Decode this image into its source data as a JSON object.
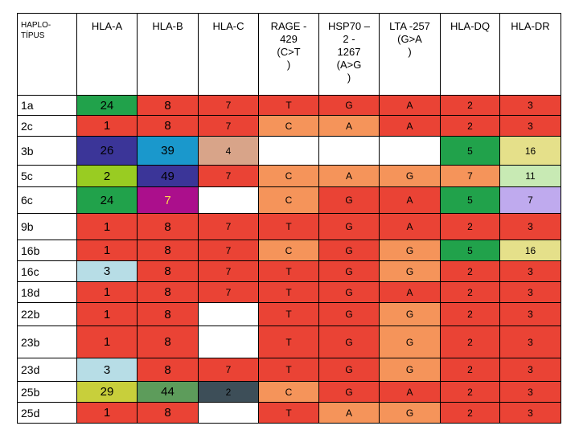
{
  "columns": [
    {
      "label": "HAPLO-\nTÍPUS"
    },
    {
      "label": "HLA-A"
    },
    {
      "label": "HLA-B"
    },
    {
      "label": "HLA-C"
    },
    {
      "label": "RAGE -\n429\n(C>T\n)"
    },
    {
      "label": "HSP70 –\n2 -\n1267\n(A>G\n)"
    },
    {
      "label": "LTA -257\n(G>A\n)"
    },
    {
      "label": "HLA-DQ"
    },
    {
      "label": "HLA-DR"
    }
  ],
  "colors": {
    "red": "#ea4335",
    "green": "#21a24b",
    "navy": "#3b3598",
    "blue": "#1a98cc",
    "tan": "#d8a489",
    "white": "#ffffff",
    "yellow": "#e5e08a",
    "lime": "#99cc22",
    "lightgreen": "#c8eab4",
    "magenta": "#ab0f8c",
    "lavender": "#bfaaee",
    "lightblue": "#b7dde6",
    "olive": "#c8cf3b",
    "sage": "#5d9c5b",
    "slate": "#3d4e58",
    "orange": "#f5945a"
  },
  "rows": [
    {
      "label": "1a",
      "cells": [
        {
          "v": "24",
          "c": "green"
        },
        {
          "v": "8",
          "c": "red"
        },
        {
          "v": "7",
          "c": "red"
        },
        {
          "v": "T",
          "c": "red"
        },
        {
          "v": "G",
          "c": "red"
        },
        {
          "v": "A",
          "c": "red"
        },
        {
          "v": "2",
          "c": "red"
        },
        {
          "v": "3",
          "c": "red"
        }
      ]
    },
    {
      "label": "2c",
      "cells": [
        {
          "v": "1",
          "c": "red"
        },
        {
          "v": "8",
          "c": "red"
        },
        {
          "v": "7",
          "c": "red"
        },
        {
          "v": "C",
          "c": "orange"
        },
        {
          "v": "A",
          "c": "orange"
        },
        {
          "v": "A",
          "c": "red"
        },
        {
          "v": "2",
          "c": "red"
        },
        {
          "v": "3",
          "c": "red"
        }
      ]
    },
    {
      "label": "3b",
      "cells": [
        {
          "v": "26",
          "c": "navy"
        },
        {
          "v": "39",
          "c": "blue"
        },
        {
          "v": "4",
          "c": "tan"
        },
        {
          "v": "",
          "c": "white"
        },
        {
          "v": "",
          "c": "white"
        },
        {
          "v": "",
          "c": "white"
        },
        {
          "v": "5",
          "c": "green"
        },
        {
          "v": "16",
          "c": "yellow"
        }
      ]
    },
    {
      "label": "5c",
      "cells": [
        {
          "v": "2",
          "c": "lime"
        },
        {
          "v": "49",
          "c": "navy"
        },
        {
          "v": "7",
          "c": "red"
        },
        {
          "v": "C",
          "c": "orange"
        },
        {
          "v": "A",
          "c": "orange"
        },
        {
          "v": "G",
          "c": "orange"
        },
        {
          "v": "7",
          "c": "orange"
        },
        {
          "v": "11",
          "c": "lightgreen"
        }
      ]
    },
    {
      "label": "6c",
      "cells": [
        {
          "v": "24",
          "c": "green"
        },
        {
          "v": "7",
          "c": "magenta"
        },
        {
          "v": "",
          "c": "white"
        },
        {
          "v": "C",
          "c": "orange"
        },
        {
          "v": "G",
          "c": "red"
        },
        {
          "v": "A",
          "c": "red"
        },
        {
          "v": "5",
          "c": "green"
        },
        {
          "v": "7",
          "c": "lavender"
        }
      ]
    },
    {
      "label": "9b",
      "cells": [
        {
          "v": "1",
          "c": "red"
        },
        {
          "v": "8",
          "c": "red"
        },
        {
          "v": "7",
          "c": "red"
        },
        {
          "v": "T",
          "c": "red"
        },
        {
          "v": "G",
          "c": "red"
        },
        {
          "v": "A",
          "c": "red"
        },
        {
          "v": "2",
          "c": "red"
        },
        {
          "v": "3",
          "c": "red"
        }
      ]
    },
    {
      "label": "16b",
      "cells": [
        {
          "v": "1",
          "c": "red"
        },
        {
          "v": "8",
          "c": "red"
        },
        {
          "v": "7",
          "c": "red"
        },
        {
          "v": "C",
          "c": "orange"
        },
        {
          "v": "G",
          "c": "red"
        },
        {
          "v": "G",
          "c": "orange"
        },
        {
          "v": "5",
          "c": "green"
        },
        {
          "v": "16",
          "c": "yellow"
        }
      ]
    },
    {
      "label": "16c",
      "cells": [
        {
          "v": "3",
          "c": "lightblue"
        },
        {
          "v": "8",
          "c": "red"
        },
        {
          "v": "7",
          "c": "red"
        },
        {
          "v": "T",
          "c": "red"
        },
        {
          "v": "G",
          "c": "red"
        },
        {
          "v": "G",
          "c": "orange"
        },
        {
          "v": "2",
          "c": "red"
        },
        {
          "v": "3",
          "c": "red"
        }
      ]
    },
    {
      "label": "18d",
      "cells": [
        {
          "v": "1",
          "c": "red"
        },
        {
          "v": "8",
          "c": "red"
        },
        {
          "v": "7",
          "c": "red"
        },
        {
          "v": "T",
          "c": "red"
        },
        {
          "v": "G",
          "c": "red"
        },
        {
          "v": "A",
          "c": "red"
        },
        {
          "v": "2",
          "c": "red"
        },
        {
          "v": "3",
          "c": "red"
        }
      ]
    },
    {
      "label": "22b",
      "cells": [
        {
          "v": "1",
          "c": "red"
        },
        {
          "v": "8",
          "c": "red"
        },
        {
          "v": "",
          "c": "white"
        },
        {
          "v": "T",
          "c": "red"
        },
        {
          "v": "G",
          "c": "red"
        },
        {
          "v": "G",
          "c": "orange"
        },
        {
          "v": "2",
          "c": "red"
        },
        {
          "v": "3",
          "c": "red"
        }
      ]
    },
    {
      "label": "23b",
      "cells": [
        {
          "v": "1",
          "c": "red"
        },
        {
          "v": "8",
          "c": "red"
        },
        {
          "v": "",
          "c": "white"
        },
        {
          "v": "T",
          "c": "red"
        },
        {
          "v": "G",
          "c": "red"
        },
        {
          "v": "G",
          "c": "orange"
        },
        {
          "v": "2",
          "c": "red"
        },
        {
          "v": "3",
          "c": "red"
        }
      ]
    },
    {
      "label": "23d",
      "cells": [
        {
          "v": "3",
          "c": "lightblue"
        },
        {
          "v": "8",
          "c": "red"
        },
        {
          "v": "7",
          "c": "red"
        },
        {
          "v": "T",
          "c": "red"
        },
        {
          "v": "G",
          "c": "red"
        },
        {
          "v": "G",
          "c": "orange"
        },
        {
          "v": "2",
          "c": "red"
        },
        {
          "v": "3",
          "c": "red"
        }
      ]
    },
    {
      "label": "25b",
      "cells": [
        {
          "v": "29",
          "c": "olive"
        },
        {
          "v": "44",
          "c": "sage"
        },
        {
          "v": "2",
          "c": "slate"
        },
        {
          "v": "C",
          "c": "orange"
        },
        {
          "v": "G",
          "c": "red"
        },
        {
          "v": "A",
          "c": "red"
        },
        {
          "v": "2",
          "c": "red"
        },
        {
          "v": "3",
          "c": "red"
        }
      ]
    },
    {
      "label": "25d",
      "cells": [
        {
          "v": "1",
          "c": "red"
        },
        {
          "v": "8",
          "c": "red"
        },
        {
          "v": "",
          "c": "white"
        },
        {
          "v": "T",
          "c": "red"
        },
        {
          "v": "A",
          "c": "orange"
        },
        {
          "v": "G",
          "c": "orange"
        },
        {
          "v": "2",
          "c": "red"
        },
        {
          "v": "3",
          "c": "red"
        }
      ]
    }
  ]
}
